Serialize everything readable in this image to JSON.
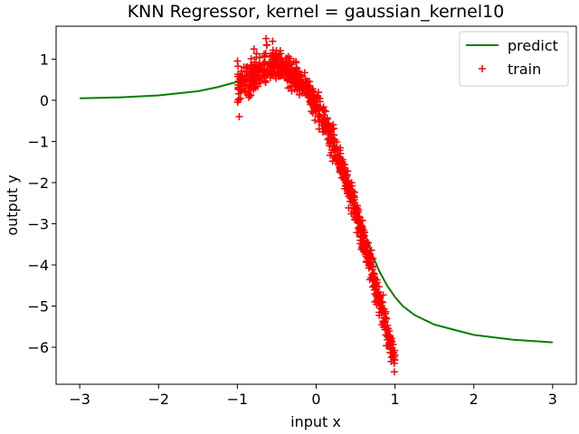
{
  "chart_data": {
    "type": "scatter",
    "title": "KNN Regressor, kernel = gaussian_kernel10",
    "xlabel": "input x",
    "ylabel": "output y",
    "xlim": [
      -3.3,
      3.3
    ],
    "ylim": [
      -6.9,
      1.8
    ],
    "xticks": [
      -3,
      -2,
      -1,
      0,
      1,
      2,
      3
    ],
    "xtick_labels": [
      "−3",
      "−2",
      "−1",
      "0",
      "1",
      "2",
      "3"
    ],
    "yticks": [
      -6,
      -5,
      -4,
      -3,
      -2,
      -1,
      0,
      1
    ],
    "ytick_labels": [
      "−6",
      "−5",
      "−4",
      "−3",
      "−2",
      "−1",
      "0",
      "1"
    ],
    "grid": false,
    "legend_position": "top-right",
    "series": [
      {
        "name": "predict",
        "kind": "line",
        "color": "#008000",
        "x": [
          -3.0,
          -2.5,
          -2.0,
          -1.5,
          -1.25,
          -1.0,
          -0.9,
          -0.8,
          -0.7,
          -0.6,
          -0.5,
          -0.4,
          -0.3,
          -0.2,
          -0.1,
          0.0,
          0.1,
          0.2,
          0.3,
          0.4,
          0.5,
          0.6,
          0.7,
          0.8,
          0.9,
          1.0,
          1.1,
          1.25,
          1.5,
          2.0,
          2.5,
          3.0
        ],
        "y": [
          0.05,
          0.07,
          0.12,
          0.22,
          0.32,
          0.45,
          0.51,
          0.56,
          0.6,
          0.61,
          0.6,
          0.53,
          0.42,
          0.27,
          0.07,
          -0.18,
          -0.5,
          -0.9,
          -1.4,
          -1.95,
          -2.55,
          -3.15,
          -3.7,
          -4.15,
          -4.5,
          -4.78,
          -5.0,
          -5.22,
          -5.45,
          -5.7,
          -5.82,
          -5.88
        ]
      },
      {
        "name": "train",
        "kind": "scatter",
        "marker": "+",
        "color": "#ff0000",
        "x_range": [
          -1.0,
          1.0
        ],
        "noise": 0.17,
        "count": 900
      }
    ]
  }
}
